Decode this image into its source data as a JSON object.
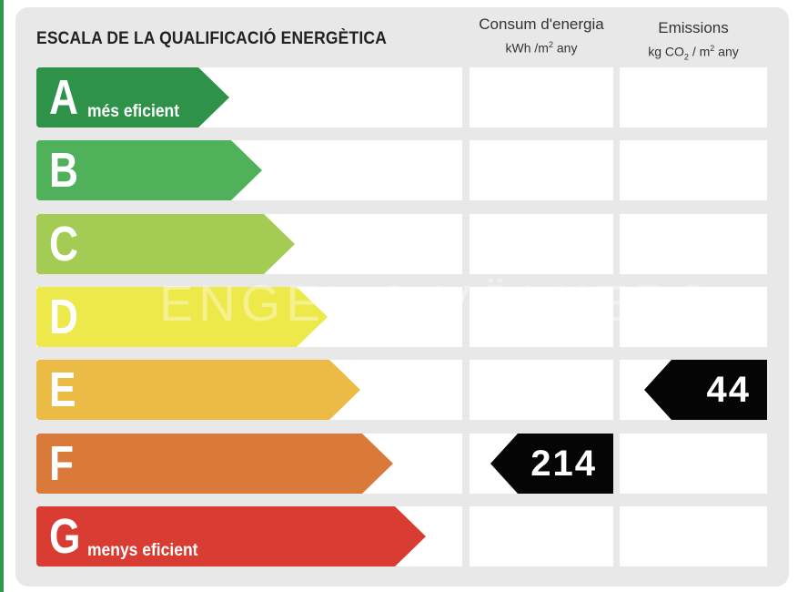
{
  "title": "ESCALA DE LA QUALIFICACIÓ ENERGÈTICA",
  "columns": {
    "consumption": {
      "title": "Consum d'energia",
      "unit_pre": "kWh /m",
      "unit_sup": "2",
      "unit_post": " any"
    },
    "emissions": {
      "title": "Emissions",
      "unit_pre": "kg CO",
      "unit_sub": "2",
      "unit_mid": " / m",
      "unit_sup": "2",
      "unit_post": "  any"
    }
  },
  "bands": [
    {
      "letter": "A",
      "note": "més eficient",
      "color": "#2e9349"
    },
    {
      "letter": "B",
      "note": "",
      "color": "#4fb15a"
    },
    {
      "letter": "C",
      "note": "",
      "color": "#a4cb53"
    },
    {
      "letter": "D",
      "note": "",
      "color": "#ede94a"
    },
    {
      "letter": "E",
      "note": "",
      "color": "#ecbb45"
    },
    {
      "letter": "F",
      "note": "",
      "color": "#d9793a"
    },
    {
      "letter": "G",
      "note": "menys eficient",
      "color": "#d83c32"
    }
  ],
  "ratings": {
    "consumption": {
      "value": "214",
      "band": "F"
    },
    "emissions": {
      "value": "44",
      "band": "E"
    }
  },
  "watermark": "ENGEL & VÖLKERS"
}
